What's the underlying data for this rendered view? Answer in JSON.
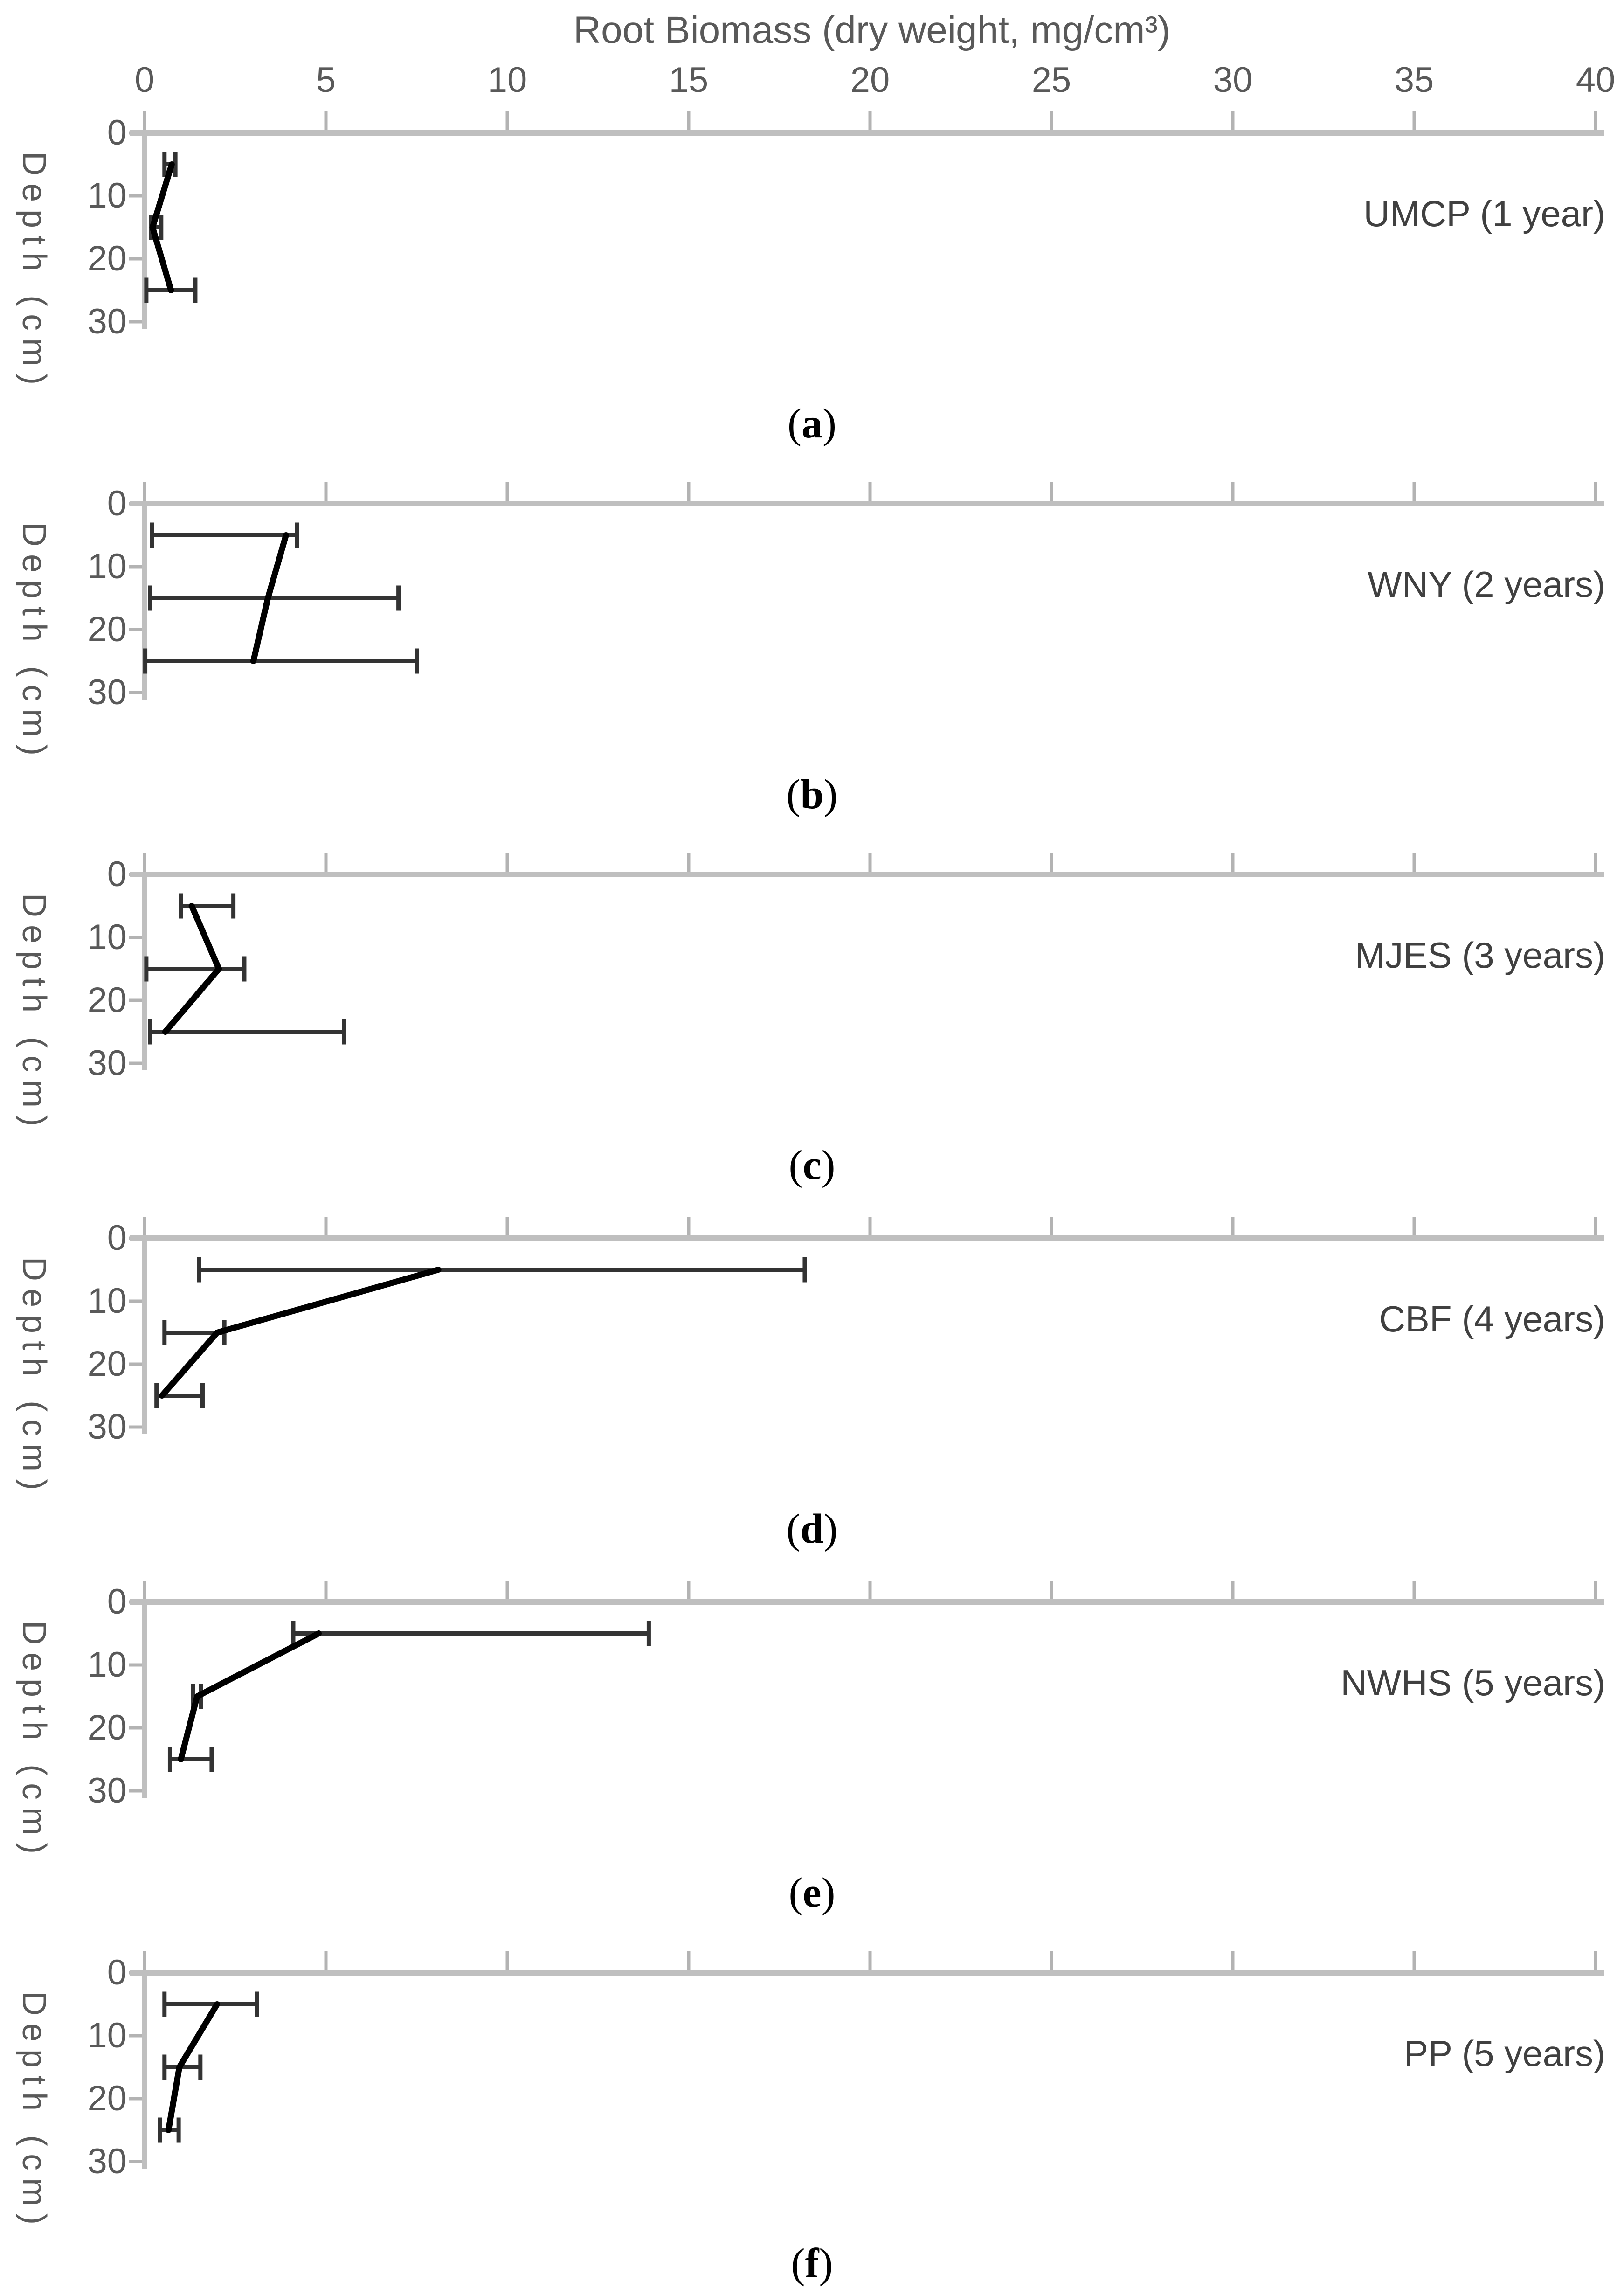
{
  "figure": {
    "x_axis_title": "Root Biomass (dry weight, mg/cm³)",
    "y_axis_title": "Depth (cm)",
    "x_ticks": [
      0,
      5,
      10,
      15,
      20,
      25,
      30,
      35,
      40
    ],
    "y_ticks_depth_cm": [
      0,
      10,
      20,
      30
    ]
  },
  "colors": {
    "background": "#ffffff",
    "axis_line": "#bfbfbf",
    "tick_mark": "#b3b3b3",
    "tick_text": "#595959",
    "series_line": "#000000",
    "error_bar": "#333333",
    "panel_label_text": "#404040",
    "caption_text": "#000000"
  },
  "chart_data": [
    {
      "type": "line",
      "caption_letter": "a",
      "site_label": "UMCP (1 year)",
      "xlabel": "Root Biomass (dry weight, mg/cm³)",
      "ylabel": "Depth (cm)",
      "xlim": [
        0,
        40
      ],
      "depth_lim_cm": [
        0,
        30
      ],
      "depths_cm": [
        5,
        15,
        25
      ],
      "biomass_mean": [
        0.75,
        0.22,
        0.73
      ],
      "error_low": [
        0.55,
        0.18,
        0.05
      ],
      "error_high": [
        0.85,
        0.46,
        1.4
      ]
    },
    {
      "type": "line",
      "caption_letter": "b",
      "site_label": "WNY (2 years)",
      "xlabel": "Root Biomass (dry weight, mg/cm³)",
      "ylabel": "Depth (cm)",
      "xlim": [
        0,
        40
      ],
      "depth_lim_cm": [
        0,
        30
      ],
      "depths_cm": [
        5,
        15,
        25
      ],
      "biomass_mean": [
        3.9,
        3.4,
        3.0
      ],
      "error_low": [
        0.2,
        0.15,
        0.02
      ],
      "error_high": [
        4.2,
        7.0,
        7.5
      ]
    },
    {
      "type": "line",
      "caption_letter": "c",
      "site_label": "MJES (3 years)",
      "xlabel": "Root Biomass (dry weight, mg/cm³)",
      "ylabel": "Depth (cm)",
      "xlim": [
        0,
        40
      ],
      "depth_lim_cm": [
        0,
        30
      ],
      "depths_cm": [
        5,
        15,
        25
      ],
      "biomass_mean": [
        1.3,
        2.05,
        0.57
      ],
      "error_low": [
        1.0,
        0.05,
        0.15
      ],
      "error_high": [
        2.45,
        2.75,
        5.5
      ]
    },
    {
      "type": "line",
      "caption_letter": "d",
      "site_label": "CBF (4 years)",
      "xlabel": "Root Biomass (dry weight, mg/cm³)",
      "ylabel": "Depth (cm)",
      "xlim": [
        0,
        40
      ],
      "depth_lim_cm": [
        0,
        30
      ],
      "depths_cm": [
        5,
        15,
        25
      ],
      "biomass_mean": [
        8.1,
        2.0,
        0.48
      ],
      "error_low": [
        1.5,
        0.55,
        0.33
      ],
      "error_high": [
        18.2,
        2.2,
        1.6
      ]
    },
    {
      "type": "line",
      "caption_letter": "e",
      "site_label": "NWHS (5 years)",
      "xlabel": "Root Biomass (dry weight, mg/cm³)",
      "ylabel": "Depth (cm)",
      "xlim": [
        0,
        40
      ],
      "depth_lim_cm": [
        0,
        30
      ],
      "depths_cm": [
        5,
        15,
        25
      ],
      "biomass_mean": [
        4.8,
        1.45,
        1.0
      ],
      "error_low": [
        4.1,
        1.34,
        0.7
      ],
      "error_high": [
        13.9,
        1.55,
        1.85
      ]
    },
    {
      "type": "line",
      "caption_letter": "f",
      "site_label": "PP (5 years)",
      "xlabel": "Root Biomass (dry weight, mg/cm³)",
      "ylabel": "Depth (cm)",
      "xlim": [
        0,
        40
      ],
      "depth_lim_cm": [
        0,
        30
      ],
      "depths_cm": [
        5,
        15,
        25
      ],
      "biomass_mean": [
        2.0,
        0.96,
        0.66
      ],
      "error_low": [
        0.55,
        0.55,
        0.42
      ],
      "error_high": [
        3.1,
        1.54,
        0.94
      ]
    }
  ]
}
